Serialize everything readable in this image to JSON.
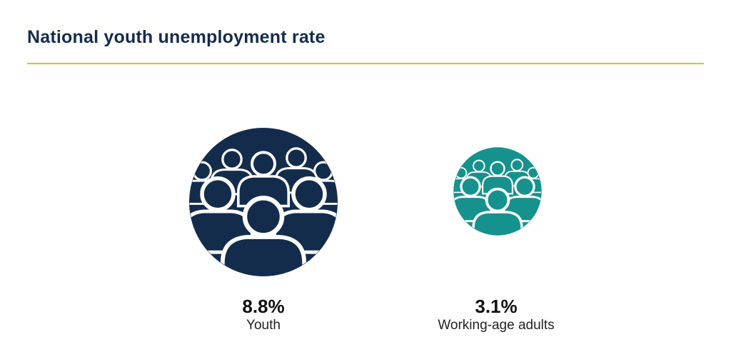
{
  "chart_data": {
    "type": "bubble",
    "title": "National youth unemployment rate",
    "unit": "%",
    "series": [
      {
        "category": "Youth",
        "value": 8.8,
        "value_label": "8.8%",
        "color": "#142c4c",
        "icon": "people-group-icon"
      },
      {
        "category": "Working-age adults",
        "value": 3.1,
        "value_label": "3.1%",
        "color": "#16928e",
        "icon": "people-group-icon"
      }
    ]
  },
  "colors": {
    "title": "#142c4c",
    "rule": "#f0b42b"
  }
}
